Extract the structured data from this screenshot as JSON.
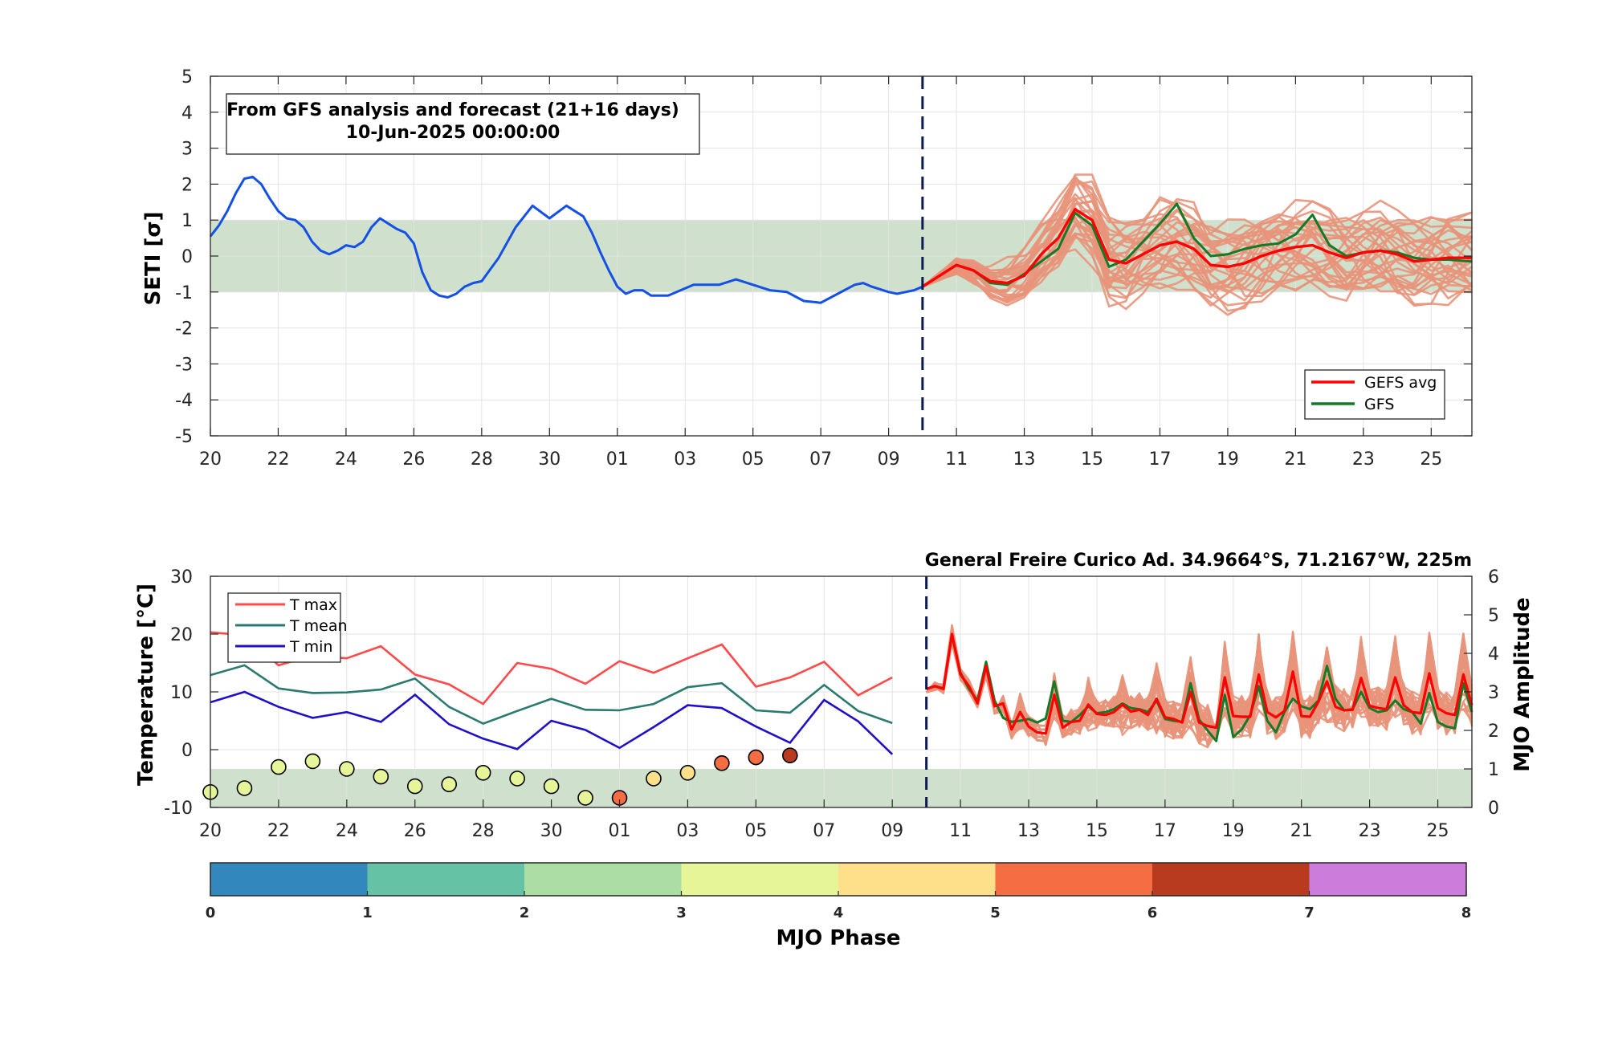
{
  "colors": {
    "observed": "#1450e6",
    "gefs_avg": "#ff0000",
    "gfs": "#137a25",
    "ensemble": "#e8937a",
    "band": "#cfe0cc",
    "divider": "#0d1a52",
    "t_max": "#ff4a4a",
    "t_mean": "#2a7a70",
    "t_min": "#1f10c8"
  },
  "top_panel": {
    "info_line1": "From GFS analysis and forecast (21+16 days)",
    "info_line2": "10-Jun-2025 00:00:00",
    "ylabel": "SETI [σ]",
    "legend": [
      "GEFS avg",
      "GFS"
    ]
  },
  "bottom_panel": {
    "station": "General Freire Curico Ad. 34.9664°S, 71.2167°W, 225m",
    "ylabel_left": "Temperature [°C]",
    "ylabel_right": "MJO Amplitude",
    "legend": [
      "T max",
      "T mean",
      "T min"
    ]
  },
  "colorbar": {
    "label": "MJO Phase",
    "ticks": [
      "0",
      "1",
      "2",
      "3",
      "4",
      "5",
      "6",
      "7",
      "8"
    ],
    "colors": [
      "#3288bd",
      "#66c2a5",
      "#abdda4",
      "#e6f598",
      "#fee08b",
      "#f46d43",
      "#b83b20",
      "#cc7ddb"
    ]
  },
  "chart_data": [
    {
      "type": "line",
      "panel": "seti",
      "xticks": [
        "20",
        "22",
        "24",
        "26",
        "28",
        "30",
        "01",
        "03",
        "05",
        "07",
        "09",
        "11",
        "13",
        "15",
        "17",
        "19",
        "21",
        "23",
        "25"
      ],
      "xlim": [
        0,
        37.2
      ],
      "ylim": [
        -5,
        5
      ],
      "yticks": [
        "-5",
        "-4",
        "-3",
        "-2",
        "-1",
        "0",
        "1",
        "2",
        "3",
        "4",
        "5"
      ],
      "band": [
        -1,
        1
      ],
      "forecast_start_day": 21,
      "series": [
        {
          "key": "observed",
          "x": [
            0,
            0.25,
            0.5,
            0.75,
            1,
            1.25,
            1.5,
            1.75,
            2,
            2.25,
            2.5,
            2.75,
            3,
            3.25,
            3.5,
            3.75,
            4,
            4.25,
            4.5,
            4.75,
            5,
            5.25,
            5.5,
            5.75,
            6,
            6.25,
            6.5,
            6.75,
            7,
            7.25,
            7.5,
            7.75,
            8,
            8.5,
            9,
            9.5,
            10,
            10.5,
            11,
            11.25,
            11.5,
            11.75,
            12,
            12.25,
            12.5,
            12.75,
            13,
            13.5,
            14,
            14.25,
            14.5,
            14.75,
            15,
            15.5,
            16,
            16.5,
            17,
            17.5,
            18,
            18.5,
            19,
            19.25,
            19.5,
            20,
            20.25,
            20.5,
            20.75,
            21
          ],
          "y": [
            0.55,
            0.85,
            1.25,
            1.75,
            2.15,
            2.2,
            2.0,
            1.6,
            1.25,
            1.05,
            1.0,
            0.8,
            0.4,
            0.15,
            0.05,
            0.15,
            0.3,
            0.25,
            0.4,
            0.8,
            1.05,
            0.9,
            0.75,
            0.65,
            0.35,
            -0.45,
            -0.95,
            -1.1,
            -1.15,
            -1.05,
            -0.85,
            -0.75,
            -0.7,
            -0.05,
            0.8,
            1.4,
            1.05,
            1.4,
            1.1,
            0.65,
            0.1,
            -0.4,
            -0.85,
            -1.05,
            -0.95,
            -0.95,
            -1.1,
            -1.1,
            -0.9,
            -0.8,
            -0.8,
            -0.8,
            -0.8,
            -0.65,
            -0.8,
            -0.95,
            -1.0,
            -1.25,
            -1.3,
            -1.05,
            -0.8,
            -0.75,
            -0.85,
            -1.0,
            -1.05,
            -1.0,
            -0.95,
            -0.85
          ]
        },
        {
          "key": "gefs_avg",
          "name": "GEFS avg",
          "x": [
            21,
            21.5,
            22,
            22.5,
            23,
            23.5,
            24,
            24.5,
            25,
            25.5,
            26,
            26.5,
            27,
            27.5,
            28,
            28.5,
            29,
            29.5,
            30,
            30.5,
            31,
            31.5,
            32,
            32.5,
            33,
            33.5,
            34,
            34.5,
            35,
            35.5,
            36,
            36.5,
            37.2
          ],
          "y": [
            -0.85,
            -0.55,
            -0.25,
            -0.4,
            -0.7,
            -0.75,
            -0.55,
            0.05,
            0.5,
            1.3,
            1.0,
            -0.1,
            -0.2,
            0.05,
            0.3,
            0.4,
            0.2,
            -0.25,
            -0.3,
            -0.2,
            0.0,
            0.15,
            0.25,
            0.3,
            0.1,
            -0.05,
            0.1,
            0.15,
            0.05,
            -0.15,
            -0.1,
            -0.05,
            -0.05
          ]
        },
        {
          "key": "gfs",
          "name": "GFS",
          "x": [
            21,
            21.5,
            22,
            22.5,
            23,
            23.5,
            24,
            24.5,
            25,
            25.5,
            26,
            26.5,
            27,
            27.5,
            28,
            28.5,
            29,
            29.5,
            30,
            30.5,
            31,
            31.5,
            32,
            32.5,
            33,
            33.5,
            34,
            34.5,
            35,
            35.5,
            36,
            36.5,
            37.2
          ],
          "y": [
            -0.85,
            -0.55,
            -0.25,
            -0.4,
            -0.75,
            -0.8,
            -0.5,
            -0.15,
            0.2,
            1.2,
            0.85,
            -0.3,
            -0.1,
            0.4,
            0.9,
            1.45,
            0.5,
            0.0,
            0.05,
            0.2,
            0.3,
            0.35,
            0.6,
            1.15,
            0.3,
            0.0,
            0.1,
            0.15,
            0.1,
            -0.05,
            -0.1,
            -0.1,
            -0.15
          ]
        }
      ]
    },
    {
      "type": "line",
      "panel": "temperature",
      "xticks": [
        "20",
        "22",
        "24",
        "26",
        "28",
        "30",
        "01",
        "03",
        "05",
        "07",
        "09",
        "11",
        "13",
        "15",
        "17",
        "19",
        "21",
        "23",
        "25"
      ],
      "xlim": [
        0,
        37
      ],
      "ylim": [
        -10,
        30
      ],
      "yticks": [
        "-10",
        "0",
        "10",
        "20",
        "30"
      ],
      "y2lim": [
        0,
        6
      ],
      "y2ticks": [
        "0",
        "1",
        "2",
        "3",
        "4",
        "5",
        "6"
      ],
      "band_amplitude": [
        0,
        1
      ],
      "series": [
        {
          "key": "t_max",
          "name": "T max",
          "x": [
            0,
            1,
            2,
            3,
            4,
            5,
            6,
            7,
            8,
            9,
            10,
            11,
            12,
            13,
            14,
            15,
            16,
            17,
            18,
            19,
            20
          ],
          "y": [
            20.3,
            19.8,
            14.6,
            16.3,
            15.8,
            17.9,
            13.0,
            11.3,
            7.9,
            15.0,
            14.0,
            11.4,
            15.3,
            13.3,
            15.8,
            18.2,
            10.9,
            12.5,
            15.2,
            9.4,
            12.5
          ]
        },
        {
          "key": "t_mean",
          "name": "T mean",
          "x": [
            0,
            1,
            2,
            3,
            4,
            5,
            6,
            7,
            8,
            9,
            10,
            11,
            12,
            13,
            14,
            15,
            16,
            17,
            18,
            19,
            20
          ],
          "y": [
            12.9,
            14.6,
            10.6,
            9.8,
            9.9,
            10.4,
            12.3,
            7.4,
            4.5,
            6.7,
            8.8,
            6.9,
            6.8,
            7.9,
            10.8,
            11.5,
            6.8,
            6.4,
            11.2,
            6.7,
            4.6
          ]
        },
        {
          "key": "t_min",
          "name": "T min",
          "x": [
            0,
            1,
            2,
            3,
            4,
            5,
            6,
            7,
            8,
            9,
            10,
            11,
            12,
            13,
            14,
            15,
            16,
            17,
            18,
            19,
            20
          ],
          "y": [
            8.2,
            10.0,
            7.4,
            5.5,
            6.5,
            4.8,
            9.5,
            4.4,
            1.9,
            0.1,
            5.0,
            3.4,
            0.3,
            3.9,
            7.7,
            7.2,
            4.0,
            1.2,
            8.6,
            4.9,
            -0.8
          ]
        },
        {
          "key": "gefs_avg",
          "x": [
            21,
            21.25,
            21.5,
            21.75,
            22,
            22.25,
            22.5,
            22.75,
            23,
            23.25,
            23.5,
            23.75,
            24,
            24.25,
            24.5,
            24.75,
            25,
            25.25,
            25.5,
            25.75,
            26,
            26.25,
            26.5,
            26.75,
            27,
            27.25,
            27.5,
            27.75,
            28,
            28.25,
            28.5,
            28.75,
            29,
            29.25,
            29.5,
            29.75,
            30,
            30.25,
            30.5,
            30.75,
            31,
            31.25,
            31.5,
            31.75,
            32,
            32.25,
            32.5,
            32.75,
            33,
            33.25,
            33.5,
            33.75,
            34,
            34.25,
            34.5,
            34.75,
            35,
            35.25,
            35.5,
            35.75,
            36,
            36.25,
            36.5,
            36.75,
            37
          ],
          "y": [
            10.5,
            11.0,
            10.5,
            20.0,
            13.0,
            11.0,
            8.0,
            14.5,
            7.5,
            8.0,
            3.5,
            6.5,
            4.0,
            3.0,
            2.8,
            9.5,
            3.8,
            4.8,
            5.0,
            7.8,
            6.2,
            6.0,
            6.5,
            7.8,
            6.6,
            6.9,
            6.0,
            8.8,
            5.6,
            5.3,
            4.7,
            10.0,
            4.7,
            4.1,
            3.8,
            12.5,
            5.8,
            5.7,
            5.7,
            13.0,
            6.5,
            5.6,
            6.7,
            13.5,
            5.8,
            5.7,
            8.3,
            11.8,
            7.4,
            6.8,
            6.9,
            12.4,
            7.6,
            7.2,
            7.0,
            12.5,
            7.7,
            6.5,
            6.3,
            13.2,
            7.2,
            6.3,
            6.0,
            13.0,
            7.7
          ]
        },
        {
          "key": "gfs",
          "x": [
            21,
            21.25,
            21.5,
            21.75,
            22,
            22.25,
            22.5,
            22.75,
            23,
            23.25,
            23.5,
            23.75,
            24,
            24.25,
            24.5,
            24.75,
            25,
            25.25,
            25.5,
            25.75,
            26,
            26.25,
            26.5,
            26.75,
            27,
            27.25,
            27.5,
            27.75,
            28,
            28.25,
            28.5,
            28.75,
            29,
            29.25,
            29.5,
            29.75,
            30,
            30.25,
            30.5,
            30.75,
            31,
            31.25,
            31.5,
            31.75,
            32,
            32.25,
            32.5,
            32.75,
            33,
            33.25,
            33.5,
            33.75,
            34,
            34.25,
            34.5,
            34.75,
            35,
            35.25,
            35.5,
            35.75,
            36,
            36.25,
            36.5,
            36.75,
            37
          ],
          "y": [
            10.5,
            11.0,
            10.6,
            19.8,
            13.3,
            10.5,
            8.5,
            15.2,
            8.5,
            5.5,
            4.8,
            5.0,
            5.3,
            4.7,
            5.4,
            11.8,
            5.0,
            4.8,
            6.0,
            7.5,
            6.3,
            6.5,
            7.0,
            8.0,
            7.2,
            7.0,
            6.5,
            8.5,
            5.3,
            5.0,
            4.8,
            11.5,
            5.2,
            3.3,
            1.5,
            9.5,
            2.2,
            3.5,
            6.0,
            11.0,
            5.0,
            3.0,
            6.5,
            8.8,
            7.5,
            7.0,
            8.5,
            14.5,
            8.8,
            6.8,
            7.0,
            10.0,
            7.2,
            6.5,
            6.8,
            8.5,
            7.0,
            6.5,
            4.5,
            9.8,
            4.8,
            4.0,
            3.7,
            11.5,
            6.5
          ]
        },
        {
          "key": "mjo",
          "name": "MJO Amplitude",
          "x": [
            0,
            1,
            2,
            3,
            4,
            5,
            6,
            7,
            8,
            9,
            10,
            11,
            12,
            13,
            14,
            15,
            16,
            17
          ],
          "y": [
            0.4,
            0.5,
            1.05,
            1.2,
            1.0,
            0.8,
            0.55,
            0.6,
            0.9,
            0.75,
            0.55,
            0.25,
            0.25,
            0.75,
            0.9,
            1.15,
            1.3,
            1.35
          ],
          "phase": [
            3.4,
            3.5,
            3.5,
            3.5,
            3.5,
            3.5,
            3.5,
            3.4,
            3.3,
            3.3,
            3.3,
            3.4,
            5.4,
            4.3,
            4.2,
            5.5,
            5.6,
            6.5
          ]
        }
      ]
    }
  ]
}
